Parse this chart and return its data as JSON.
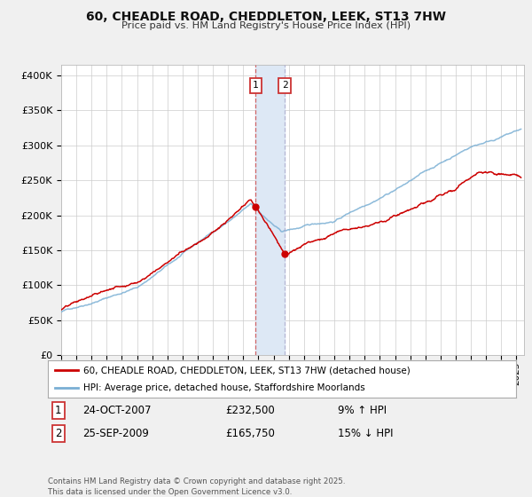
{
  "title_line1": "60, CHEADLE ROAD, CHEDDLETON, LEEK, ST13 7HW",
  "title_line2": "Price paid vs. HM Land Registry's House Price Index (HPI)",
  "ylabel_ticks": [
    "£0",
    "£50K",
    "£100K",
    "£150K",
    "£200K",
    "£250K",
    "£300K",
    "£350K",
    "£400K"
  ],
  "ytick_values": [
    0,
    50000,
    100000,
    150000,
    200000,
    250000,
    300000,
    350000,
    400000
  ],
  "ylim": [
    0,
    415000
  ],
  "xlim_start": 1995.0,
  "xlim_end": 2025.5,
  "red_color": "#cc0000",
  "blue_color": "#7aafd4",
  "marker1_date": 2007.81,
  "marker2_date": 2009.73,
  "marker1_price": 232500,
  "marker2_price": 165750,
  "legend_red": "60, CHEADLE ROAD, CHEDDLETON, LEEK, ST13 7HW (detached house)",
  "legend_blue": "HPI: Average price, detached house, Staffordshire Moorlands",
  "ann1_date": "24-OCT-2007",
  "ann1_price": "£232,500",
  "ann1_hpi": "9% ↑ HPI",
  "ann2_date": "25-SEP-2009",
  "ann2_price": "£165,750",
  "ann2_hpi": "15% ↓ HPI",
  "footer": "Contains HM Land Registry data © Crown copyright and database right 2025.\nThis data is licensed under the Open Government Licence v3.0.",
  "background_color": "#f0f0f0",
  "plot_bg_color": "#ffffff",
  "span_color": "#dde8f5"
}
